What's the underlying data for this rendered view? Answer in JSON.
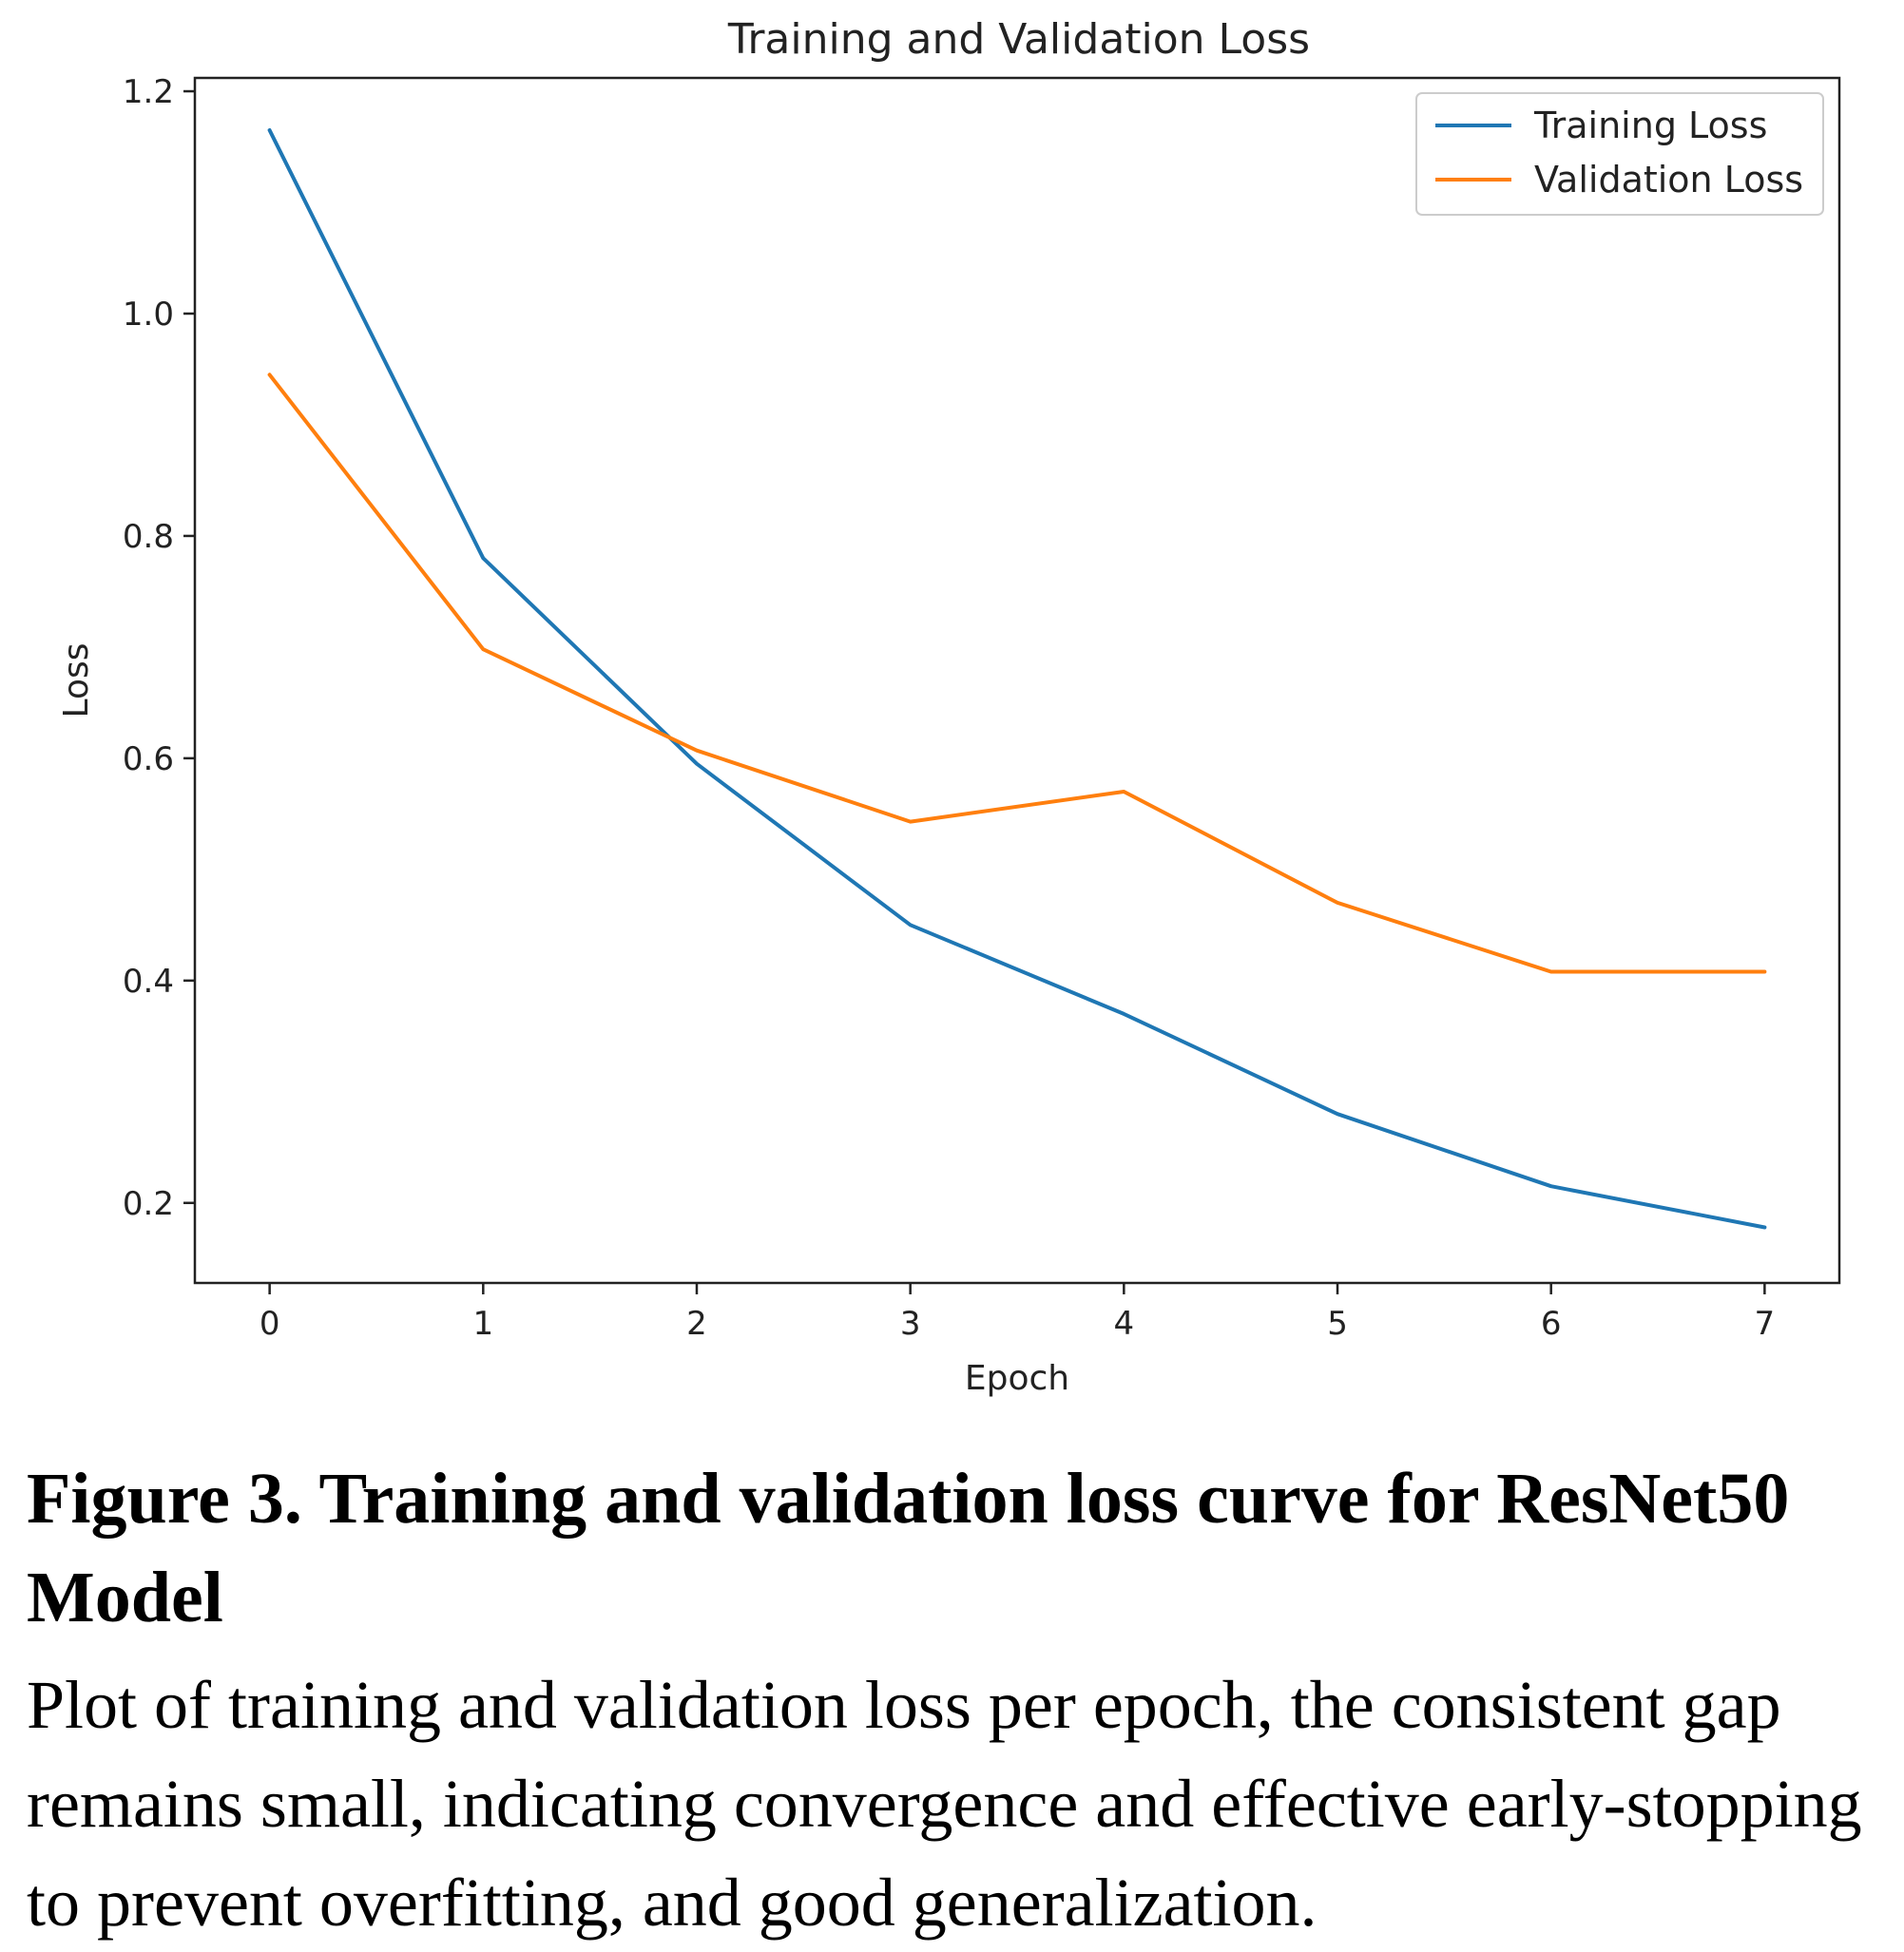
{
  "chart_data": {
    "type": "line",
    "title": "Training and Validation Loss",
    "xlabel": "Epoch",
    "ylabel": "Loss",
    "x": [
      0,
      1,
      2,
      3,
      4,
      5,
      6,
      7
    ],
    "xlim": [
      -0.35,
      7.35
    ],
    "ylim": [
      0.128,
      1.212
    ],
    "xticks": [
      0,
      1,
      2,
      3,
      4,
      5,
      6,
      7
    ],
    "yticks": [
      0.2,
      0.4,
      0.6,
      0.8,
      1.0,
      1.2
    ],
    "ytick_labels": [
      "0.2",
      "0.4",
      "0.6",
      "0.8",
      "1.0",
      "1.2"
    ],
    "grid": false,
    "legend_position": "top-right",
    "series": [
      {
        "name": "Training Loss",
        "color": "#1f77b4",
        "values": [
          1.165,
          0.78,
          0.595,
          0.45,
          0.37,
          0.28,
          0.215,
          0.178
        ]
      },
      {
        "name": "Validation Loss",
        "color": "#ff7f0e",
        "values": [
          0.945,
          0.698,
          0.607,
          0.543,
          0.57,
          0.47,
          0.408,
          0.408
        ]
      }
    ]
  },
  "caption": {
    "title": "Figure 3. Training and validation loss curve for ResNet50 Model",
    "body": "Plot of training and validation loss per epoch, the consistent gap remains small, indicating convergence and effective early-stopping to prevent overfitting, and good generalization."
  }
}
